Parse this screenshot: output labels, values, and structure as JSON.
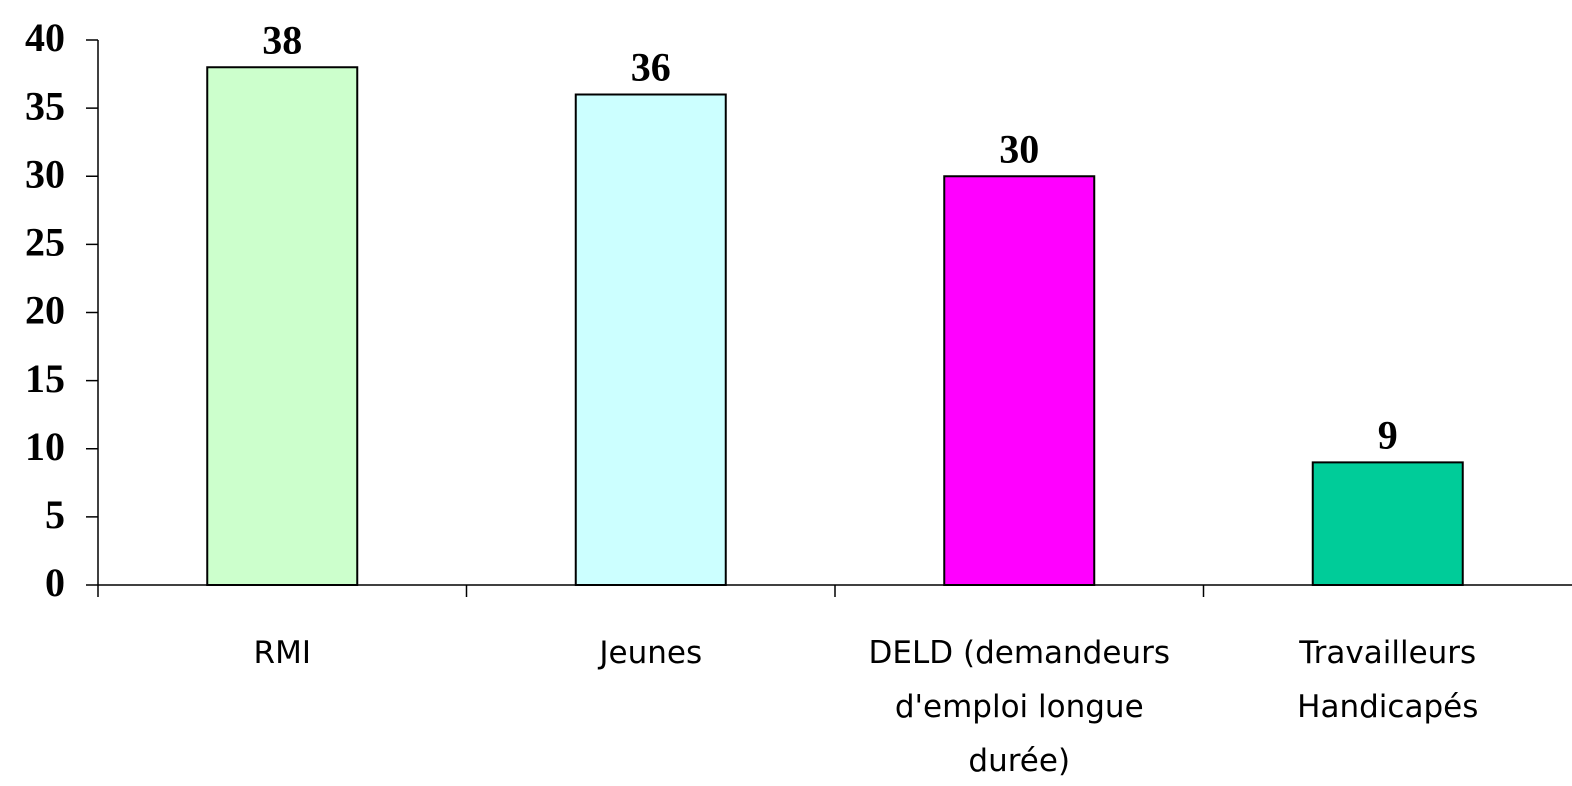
{
  "chart_data": {
    "type": "bar",
    "categories": [
      "RMI",
      "Jeunes",
      "DELD (demandeurs d'emploi longue durée)",
      "Travailleurs Handicapés"
    ],
    "values": [
      38,
      36,
      30,
      9
    ],
    "colors": [
      "#ccffcc",
      "#ccffff",
      "#ff00ff",
      "#00cc99"
    ],
    "ylim": [
      0,
      40
    ],
    "yticks": [
      0,
      5,
      10,
      15,
      20,
      25,
      30,
      35,
      40
    ],
    "grid": false
  }
}
